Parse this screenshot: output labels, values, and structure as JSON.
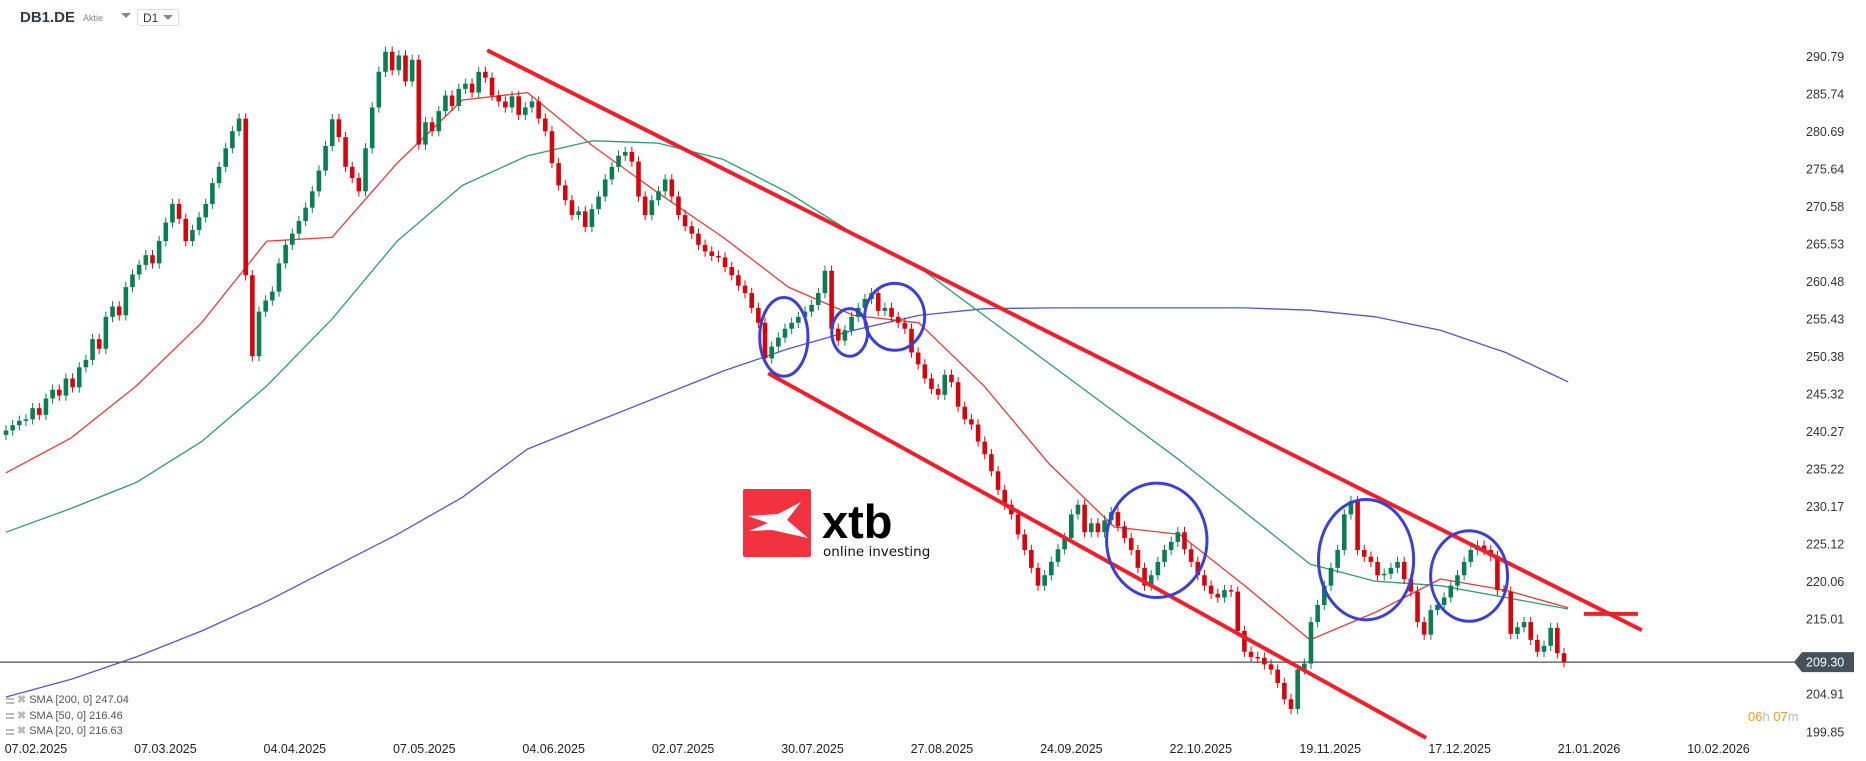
{
  "header": {
    "symbol": "DB1.DE",
    "instrument_type": "Aktie",
    "timeframe": "D1"
  },
  "logo": {
    "brand": "xtb",
    "tagline": "online investing",
    "color": "#f2323f"
  },
  "countdown": {
    "hours": "06",
    "hours_unit": "h",
    "minutes": "07",
    "minutes_unit": "m"
  },
  "legend": [
    {
      "label": "SMA [200,  0] 247.04",
      "color": "#5157c9"
    },
    {
      "label": "SMA [50,  0] 216.46",
      "color": "#2e9c70"
    },
    {
      "label": "SMA [20,  0] 216.63",
      "color": "#e8393a"
    }
  ],
  "chart_data": {
    "type": "candlestick",
    "colors": {
      "up": "#0b7d52",
      "down": "#d4050d",
      "sma200": "#5157c9",
      "sma50": "#2e9c70",
      "sma20": "#e8393a",
      "trendline": "#f0202a",
      "circle": "#3b40d2",
      "price_line": "#45525c"
    },
    "y_ticks": [
      "290.79",
      "285.74",
      "280.69",
      "275.64",
      "270.58",
      "265.53",
      "260.48",
      "255.43",
      "250.38",
      "245.32",
      "240.27",
      "235.22",
      "230.17",
      "225.12",
      "220.06",
      "215.01",
      "204.91",
      "199.85"
    ],
    "x_ticks": [
      "07.02.2025",
      "07.03.2025",
      "04.04.2025",
      "07.05.2025",
      "04.06.2025",
      "02.07.2025",
      "30.07.2025",
      "27.08.2025",
      "24.09.2025",
      "22.10.2025",
      "19.11.2025",
      "17.12.2025",
      "21.01.2026",
      "10.02.2026"
    ],
    "current_price": "209.30",
    "close": [
      240.5,
      241.2,
      241.8,
      242.0,
      243.5,
      242.6,
      244.8,
      246.0,
      245.2,
      247.5,
      246.3,
      249.0,
      250.0,
      252.8,
      251.5,
      255.8,
      257.2,
      256.0,
      259.8,
      261.5,
      262.8,
      264.1,
      263.0,
      266.0,
      268.5,
      271.0,
      269.0,
      266.0,
      267.5,
      269.2,
      271.0,
      273.8,
      276.0,
      278.5,
      280.8,
      282.5,
      261.4,
      250.5,
      256.5,
      258.0,
      259.2,
      263.0,
      265.5,
      267.0,
      268.7,
      270.5,
      272.7,
      275.5,
      278.8,
      282.4,
      280.0,
      276.0,
      274.5,
      272.7,
      278.5,
      284.0,
      288.8,
      291.5,
      289.0,
      291.0,
      287.5,
      290.4,
      279.0,
      282.0,
      280.8,
      283.5,
      285.6,
      284.2,
      286.5,
      287.2,
      286.0,
      288.8,
      288.0,
      285.6,
      284.8,
      284.0,
      285.5,
      283.0,
      284.0,
      284.8,
      282.5,
      280.8,
      276.5,
      273.5,
      271.5,
      269.5,
      270.0,
      267.9,
      270.3,
      272.0,
      274.3,
      276.0,
      277.5,
      278.0,
      276.7,
      272.0,
      269.5,
      271.5,
      272.7,
      274.3,
      272.0,
      269.5,
      268.0,
      267.0,
      265.5,
      264.6,
      264.0,
      263.8,
      262.5,
      261.4,
      260.0,
      259.0,
      257.0,
      255.0,
      250.2,
      251.8,
      253.0,
      254.2,
      255.0,
      255.8,
      256.5,
      257.4,
      259.0,
      262.0,
      254.2,
      252.6,
      254.0,
      255.8,
      257.0,
      258.2,
      259.0,
      256.6,
      257.0,
      255.8,
      255.0,
      254.2,
      251.0,
      249.4,
      247.5,
      246.1,
      245.3,
      248.0,
      247.0,
      243.7,
      242.0,
      241.3,
      239.0,
      237.3,
      235.0,
      232.5,
      230.5,
      229.2,
      226.5,
      224.4,
      222.0,
      219.6,
      221.0,
      222.8,
      224.5,
      226.0,
      229.2,
      230.5,
      226.8,
      228.0,
      226.8,
      228.4,
      229.5,
      227.6,
      226.0,
      224.4,
      222.0,
      219.6,
      221.0,
      222.8,
      224.4,
      225.5,
      226.8,
      224.5,
      222.8,
      221.0,
      219.6,
      218.5,
      218.0,
      219.0,
      218.8,
      213.5,
      210.7,
      210.0,
      209.9,
      209.0,
      208.3,
      206.5,
      204.3,
      203.0,
      208.3,
      209.1,
      214.7,
      217.0,
      219.6,
      222.0,
      224.4,
      229.2,
      231.0,
      224.4,
      223.5,
      222.8,
      221.0,
      221.2,
      222.0,
      222.8,
      220.5,
      218.8,
      214.7,
      213.0,
      216.3,
      217.0,
      218.0,
      219.6,
      221.0,
      222.8,
      224.4,
      225.0,
      224.4,
      223.6,
      219.0,
      218.8,
      213.1,
      214.0,
      214.7,
      212.3,
      210.7,
      211.5,
      213.9,
      210.5,
      209.3
    ],
    "sma_every_10_bars": {
      "sma200": [
        204.6,
        207.0,
        210.0,
        213.5,
        217.5,
        222.0,
        226.5,
        231.5,
        238.0,
        241.5,
        245.0,
        248.5,
        251.5,
        254.0,
        256.0,
        256.9,
        257.0,
        257.0,
        257.0,
        257.0,
        256.7,
        255.8,
        254.0,
        251.0,
        247.04
      ],
      "sma50": [
        226.8,
        230.0,
        233.5,
        239.0,
        246.5,
        255.5,
        266.0,
        273.5,
        277.5,
        279.5,
        279.2,
        277.0,
        272.5,
        267.0,
        262.5,
        256.0,
        249.5,
        243.0,
        236.5,
        229.5,
        222.5,
        220.2,
        219.6,
        218.0,
        216.46
      ],
      "sma20": [
        234.8,
        239.5,
        246.5,
        255.0,
        266.0,
        266.5,
        276.5,
        285.0,
        286.0,
        278.8,
        272.5,
        266.5,
        259.8,
        256.0,
        255.0,
        246.5,
        236.0,
        227.5,
        226.5,
        219.6,
        212.3,
        216.0,
        220.5,
        219.0,
        216.63
      ]
    },
    "annotations": {
      "trendlines": [
        {
          "from": {
            "bar": 73.8,
            "price": 291.7
          },
          "to": {
            "bar": 250.9,
            "price": 213.6
          }
        },
        {
          "from": {
            "bar": 116.9,
            "price": 248.2
          },
          "to": {
            "bar": 217.8,
            "price": 199.1
          }
        },
        {
          "from": {
            "bar": 242.0,
            "price": 215.8
          },
          "to": {
            "bar": 250.3,
            "price": 215.8
          }
        }
      ],
      "circles": [
        {
          "bar": 119.3,
          "price": 253.1,
          "bar_radius": 3.7,
          "price_radius": 5.3
        },
        {
          "bar": 129.4,
          "price": 253.7,
          "bar_radius": 2.75,
          "price_radius": 3.2
        },
        {
          "bar": 136.3,
          "price": 255.8,
          "bar_radius": 4.6,
          "price_radius": 4.5
        },
        {
          "bar": 176.5,
          "price": 225.7,
          "bar_radius": 7.7,
          "price_radius": 7.7
        },
        {
          "bar": 208.6,
          "price": 223.1,
          "bar_radius": 7.3,
          "price_radius": 8.1
        },
        {
          "bar": 224.4,
          "price": 220.9,
          "bar_radius": 5.9,
          "price_radius": 6.1
        }
      ]
    }
  }
}
